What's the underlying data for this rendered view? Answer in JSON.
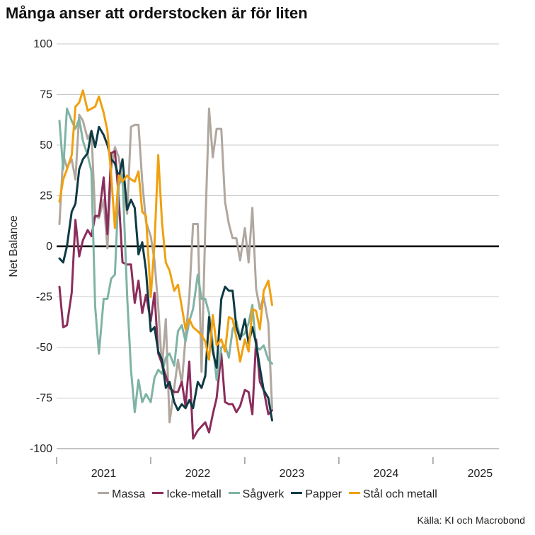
{
  "chart_data": {
    "type": "line",
    "title": "Många anser att orderstocken är för liten",
    "ylabel": "Net Balance",
    "xlabel": "",
    "ylim": [
      -100,
      100
    ],
    "yticks": [
      100,
      75,
      50,
      25,
      0,
      -25,
      -50,
      -75,
      -100
    ],
    "xlim": [
      2020.5,
      2025.2
    ],
    "year_labels": [
      {
        "label": "2021",
        "x": 2021.0
      },
      {
        "label": "2022",
        "x": 2022.0
      },
      {
        "label": "2023",
        "x": 2023.0
      },
      {
        "label": "2024",
        "x": 2024.0
      },
      {
        "label": "2025",
        "x": 2025.0
      }
    ],
    "year_boundaries": [
      2020.5,
      2021.5,
      2022.5,
      2023.5,
      2024.5
    ],
    "source": "Källa: KI och Macrobond",
    "series": [
      {
        "name": "Massa",
        "color": "#b0a79e",
        "points": [
          [
            2020.53,
            11
          ],
          [
            2020.57,
            45
          ],
          [
            2020.61,
            39
          ],
          [
            2020.66,
            43
          ],
          [
            2020.7,
            33
          ],
          [
            2020.74,
            65
          ],
          [
            2020.78,
            62
          ],
          [
            2020.83,
            53
          ],
          [
            2020.87,
            57
          ],
          [
            2020.91,
            15
          ],
          [
            2020.95,
            14
          ],
          [
            2021.0,
            23
          ],
          [
            2021.04,
            -1
          ],
          [
            2021.08,
            38
          ],
          [
            2021.12,
            49
          ],
          [
            2021.16,
            44
          ],
          [
            2021.2,
            31
          ],
          [
            2021.25,
            16
          ],
          [
            2021.29,
            59
          ],
          [
            2021.33,
            60
          ],
          [
            2021.37,
            60
          ],
          [
            2021.41,
            32
          ],
          [
            2021.45,
            12
          ],
          [
            2021.5,
            5
          ],
          [
            2021.54,
            -7
          ],
          [
            2021.58,
            -30
          ],
          [
            2021.62,
            -60
          ],
          [
            2021.66,
            -36
          ],
          [
            2021.7,
            -87
          ],
          [
            2021.75,
            -70
          ],
          [
            2021.79,
            -56
          ],
          [
            2021.83,
            -68
          ],
          [
            2021.87,
            -45
          ],
          [
            2021.91,
            -25
          ],
          [
            2021.95,
            11
          ],
          [
            2022.0,
            11
          ],
          [
            2022.04,
            -62
          ],
          [
            2022.08,
            10
          ],
          [
            2022.12,
            68
          ],
          [
            2022.16,
            44
          ],
          [
            2022.2,
            58
          ],
          [
            2022.25,
            58
          ],
          [
            2022.29,
            22
          ],
          [
            2022.33,
            11
          ],
          [
            2022.37,
            4
          ],
          [
            2022.41,
            4
          ],
          [
            2022.45,
            -7
          ],
          [
            2022.5,
            9
          ],
          [
            2022.54,
            -8
          ],
          [
            2022.58,
            19
          ],
          [
            2022.62,
            -21
          ],
          [
            2022.66,
            -31
          ],
          [
            2022.7,
            -25
          ],
          [
            2022.75,
            -38
          ],
          [
            2022.79,
            -80
          ]
        ]
      },
      {
        "name": "Icke-metall",
        "color": "#8b2d5c",
        "points": [
          [
            2020.53,
            -20
          ],
          [
            2020.57,
            -40
          ],
          [
            2020.61,
            -39
          ],
          [
            2020.66,
            -23
          ],
          [
            2020.7,
            13
          ],
          [
            2020.74,
            -5
          ],
          [
            2020.78,
            3
          ],
          [
            2020.83,
            8
          ],
          [
            2020.87,
            5
          ],
          [
            2020.91,
            15
          ],
          [
            2020.95,
            15
          ],
          [
            2021.0,
            34
          ],
          [
            2021.04,
            6
          ],
          [
            2021.08,
            46
          ],
          [
            2021.12,
            47
          ],
          [
            2021.16,
            24
          ],
          [
            2021.2,
            -8
          ],
          [
            2021.25,
            -9
          ],
          [
            2021.29,
            -9
          ],
          [
            2021.33,
            -28
          ],
          [
            2021.37,
            -17
          ],
          [
            2021.41,
            -33
          ],
          [
            2021.45,
            -24
          ],
          [
            2021.5,
            -37
          ],
          [
            2021.54,
            -23
          ],
          [
            2021.58,
            -53
          ],
          [
            2021.62,
            -58
          ],
          [
            2021.66,
            -64
          ],
          [
            2021.7,
            -70
          ],
          [
            2021.75,
            -72
          ],
          [
            2021.79,
            -72
          ],
          [
            2021.83,
            -67
          ],
          [
            2021.87,
            -79
          ],
          [
            2021.91,
            -57
          ],
          [
            2021.95,
            -95
          ],
          [
            2022.0,
            -91
          ],
          [
            2022.04,
            -89
          ],
          [
            2022.08,
            -87
          ],
          [
            2022.12,
            -92
          ],
          [
            2022.16,
            -83
          ],
          [
            2022.2,
            -75
          ],
          [
            2022.25,
            -53
          ],
          [
            2022.29,
            -77
          ],
          [
            2022.33,
            -78
          ],
          [
            2022.37,
            -78
          ],
          [
            2022.41,
            -82
          ],
          [
            2022.45,
            -79
          ],
          [
            2022.5,
            -71
          ],
          [
            2022.54,
            -72
          ],
          [
            2022.58,
            -83
          ],
          [
            2022.62,
            -46
          ],
          [
            2022.66,
            -67
          ],
          [
            2022.7,
            -71
          ],
          [
            2022.75,
            -83
          ],
          [
            2022.79,
            -81
          ]
        ]
      },
      {
        "name": "Sågverk",
        "color": "#7fb3a5",
        "points": [
          [
            2020.53,
            62
          ],
          [
            2020.57,
            38
          ],
          [
            2020.61,
            68
          ],
          [
            2020.66,
            62
          ],
          [
            2020.7,
            58
          ],
          [
            2020.74,
            63
          ],
          [
            2020.78,
            52
          ],
          [
            2020.83,
            45
          ],
          [
            2020.87,
            37
          ],
          [
            2020.91,
            -30
          ],
          [
            2020.95,
            -53
          ],
          [
            2021.0,
            -26
          ],
          [
            2021.04,
            -26
          ],
          [
            2021.08,
            -16
          ],
          [
            2021.12,
            -14
          ],
          [
            2021.16,
            30
          ],
          [
            2021.2,
            35
          ],
          [
            2021.25,
            -25
          ],
          [
            2021.29,
            -61
          ],
          [
            2021.33,
            -82
          ],
          [
            2021.37,
            -66
          ],
          [
            2021.41,
            -77
          ],
          [
            2021.45,
            -73
          ],
          [
            2021.5,
            -77
          ],
          [
            2021.54,
            -65
          ],
          [
            2021.58,
            -61
          ],
          [
            2021.62,
            -63
          ],
          [
            2021.66,
            -55
          ],
          [
            2021.7,
            -53
          ],
          [
            2021.75,
            -59
          ],
          [
            2021.79,
            -42
          ],
          [
            2021.83,
            -39
          ],
          [
            2021.87,
            -47
          ],
          [
            2021.91,
            -37
          ],
          [
            2021.95,
            -31
          ],
          [
            2022.0,
            -14
          ],
          [
            2022.04,
            -26
          ],
          [
            2022.08,
            -26
          ],
          [
            2022.12,
            -33
          ],
          [
            2022.16,
            -48
          ],
          [
            2022.2,
            -66
          ],
          [
            2022.25,
            -50
          ],
          [
            2022.29,
            -49
          ],
          [
            2022.33,
            -55
          ],
          [
            2022.37,
            -41
          ],
          [
            2022.41,
            -37
          ],
          [
            2022.45,
            -45
          ],
          [
            2022.5,
            -43
          ],
          [
            2022.54,
            -38
          ],
          [
            2022.58,
            -29
          ],
          [
            2022.62,
            -50
          ],
          [
            2022.66,
            -51
          ],
          [
            2022.7,
            -49
          ],
          [
            2022.75,
            -56
          ],
          [
            2022.79,
            -58
          ]
        ]
      },
      {
        "name": "Papper",
        "color": "#0e3a44",
        "points": [
          [
            2020.53,
            -6
          ],
          [
            2020.57,
            -8
          ],
          [
            2020.61,
            0
          ],
          [
            2020.66,
            17
          ],
          [
            2020.7,
            21
          ],
          [
            2020.74,
            38
          ],
          [
            2020.78,
            43
          ],
          [
            2020.83,
            46
          ],
          [
            2020.87,
            57
          ],
          [
            2020.91,
            49
          ],
          [
            2020.95,
            59
          ],
          [
            2021.0,
            55
          ],
          [
            2021.04,
            50
          ],
          [
            2021.08,
            43
          ],
          [
            2021.12,
            41
          ],
          [
            2021.16,
            34
          ],
          [
            2021.2,
            43
          ],
          [
            2021.25,
            18
          ],
          [
            2021.29,
            23
          ],
          [
            2021.33,
            19
          ],
          [
            2021.37,
            -4
          ],
          [
            2021.41,
            2
          ],
          [
            2021.45,
            -12
          ],
          [
            2021.5,
            -42
          ],
          [
            2021.54,
            -40
          ],
          [
            2021.58,
            -52
          ],
          [
            2021.62,
            -56
          ],
          [
            2021.66,
            -70
          ],
          [
            2021.7,
            -67
          ],
          [
            2021.75,
            -77
          ],
          [
            2021.79,
            -81
          ],
          [
            2021.83,
            -78
          ],
          [
            2021.87,
            -80
          ],
          [
            2021.91,
            -76
          ],
          [
            2021.95,
            -80
          ],
          [
            2022.0,
            -67
          ],
          [
            2022.04,
            -70
          ],
          [
            2022.08,
            -64
          ],
          [
            2022.12,
            -35
          ],
          [
            2022.16,
            -52
          ],
          [
            2022.2,
            -60
          ],
          [
            2022.25,
            -26
          ],
          [
            2022.29,
            -20
          ],
          [
            2022.33,
            -22
          ],
          [
            2022.37,
            -22
          ],
          [
            2022.41,
            -40
          ],
          [
            2022.45,
            -46
          ],
          [
            2022.5,
            -36
          ],
          [
            2022.54,
            -48
          ],
          [
            2022.58,
            -40
          ],
          [
            2022.62,
            -48
          ],
          [
            2022.66,
            -60
          ],
          [
            2022.7,
            -71
          ],
          [
            2022.75,
            -75
          ],
          [
            2022.79,
            -86
          ]
        ]
      },
      {
        "name": "Stål och metall",
        "color": "#f0a00f",
        "points": [
          [
            2020.53,
            22
          ],
          [
            2020.57,
            33
          ],
          [
            2020.61,
            38
          ],
          [
            2020.66,
            45
          ],
          [
            2020.7,
            69
          ],
          [
            2020.74,
            71
          ],
          [
            2020.78,
            77
          ],
          [
            2020.83,
            67
          ],
          [
            2020.87,
            68
          ],
          [
            2020.91,
            69
          ],
          [
            2020.95,
            74
          ],
          [
            2021.0,
            66
          ],
          [
            2021.04,
            57
          ],
          [
            2021.08,
            35
          ],
          [
            2021.12,
            9
          ],
          [
            2021.16,
            35
          ],
          [
            2021.2,
            32
          ],
          [
            2021.25,
            35
          ],
          [
            2021.29,
            33
          ],
          [
            2021.33,
            32
          ],
          [
            2021.37,
            37
          ],
          [
            2021.41,
            17
          ],
          [
            2021.45,
            15
          ],
          [
            2021.5,
            -25
          ],
          [
            2021.54,
            1
          ],
          [
            2021.58,
            45
          ],
          [
            2021.62,
            12
          ],
          [
            2021.66,
            -8
          ],
          [
            2021.7,
            -12
          ],
          [
            2021.75,
            -22
          ],
          [
            2021.79,
            -19
          ],
          [
            2021.83,
            -30
          ],
          [
            2021.87,
            -41
          ],
          [
            2021.91,
            -36
          ],
          [
            2021.95,
            -40
          ],
          [
            2022.0,
            -42
          ],
          [
            2022.04,
            -44
          ],
          [
            2022.08,
            -47
          ],
          [
            2022.12,
            -56
          ],
          [
            2022.16,
            -34
          ],
          [
            2022.2,
            -49
          ],
          [
            2022.25,
            -46
          ],
          [
            2022.29,
            -52
          ],
          [
            2022.33,
            -35
          ],
          [
            2022.37,
            -36
          ],
          [
            2022.41,
            -45
          ],
          [
            2022.45,
            -57
          ],
          [
            2022.5,
            -46
          ],
          [
            2022.54,
            -52
          ],
          [
            2022.58,
            -31
          ],
          [
            2022.62,
            -32
          ],
          [
            2022.66,
            -41
          ],
          [
            2022.7,
            -22
          ],
          [
            2022.75,
            -17
          ],
          [
            2022.79,
            -29
          ]
        ]
      }
    ]
  }
}
